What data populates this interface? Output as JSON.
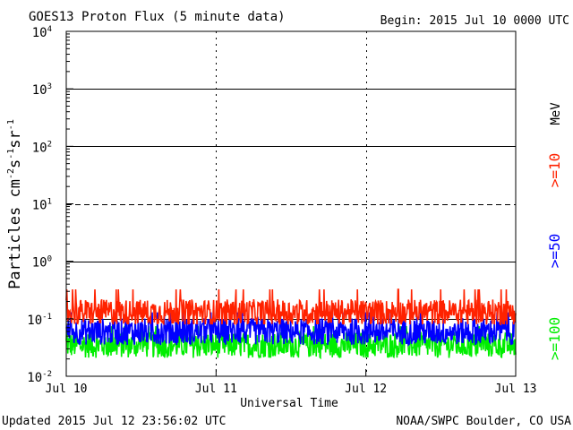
{
  "chart_data": {
    "type": "line",
    "title": "GOES13 Proton Flux (5 minute data)",
    "begin_text": "Begin: 2015 Jul 10 0000 UTC",
    "xlabel": "Universal Time",
    "ylabel": {
      "main": "Particles cm",
      "e1": "-2",
      "s": "s",
      "e2": "-1",
      "sr": "sr",
      "e3": "-1"
    },
    "unit_label": "MeV",
    "footer_left": "Updated 2015 Jul 12 23:56:02 UTC",
    "footer_right": "NOAA/SWPC Boulder, CO USA",
    "x_ticks": [
      {
        "label": "Jul 10",
        "day": 0
      },
      {
        "label": "Jul 11",
        "day": 1
      },
      {
        "label": "Jul 12",
        "day": 2
      },
      {
        "label": "Jul 13",
        "day": 3
      }
    ],
    "xlim_days": [
      0,
      3
    ],
    "y_scale": "log",
    "ylim": [
      0.01,
      10000
    ],
    "y_ticks": [
      {
        "base": "10",
        "exp": "4",
        "value": 10000
      },
      {
        "base": "10",
        "exp": "3",
        "value": 1000
      },
      {
        "base": "10",
        "exp": "2",
        "value": 100
      },
      {
        "base": "10",
        "exp": "1",
        "value": 10
      },
      {
        "base": "10",
        "exp": "0",
        "value": 1
      },
      {
        "base": "10",
        "exp": "-1",
        "value": 0.1
      },
      {
        "base": "10",
        "exp": "-2",
        "value": 0.01
      }
    ],
    "gridlines": [
      {
        "value": 1000,
        "style": "solid"
      },
      {
        "value": 100,
        "style": "solid"
      },
      {
        "value": 10,
        "style": "dashed"
      },
      {
        "value": 1,
        "style": "solid"
      },
      {
        "value": 0.1,
        "style": "solid"
      }
    ],
    "day_markers": [
      1,
      2
    ],
    "series": [
      {
        "name": ">=10",
        "color": "#ff2200",
        "typical": 0.13,
        "min": 0.08,
        "max": 0.35
      },
      {
        "name": ">=50",
        "color": "#0000ff",
        "typical": 0.06,
        "min": 0.03,
        "max": 0.14
      },
      {
        "name": ">=100",
        "color": "#00ee00",
        "typical": 0.035,
        "min": 0.018,
        "max": 0.08
      }
    ]
  }
}
